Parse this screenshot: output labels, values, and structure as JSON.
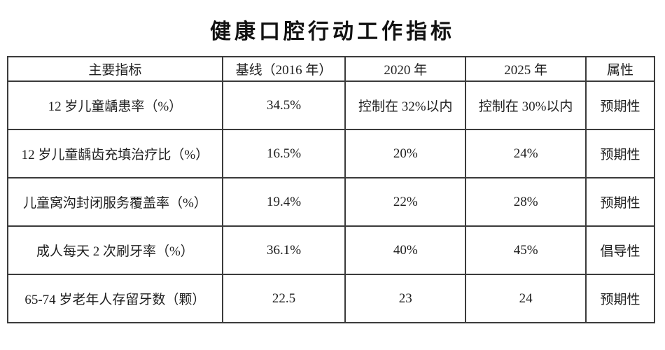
{
  "page": {
    "title": "健康口腔行动工作指标"
  },
  "table": {
    "headers": [
      "主要指标",
      "基线（2016 年）",
      "2020 年",
      "2025 年",
      "属性"
    ],
    "rows": [
      [
        "12 岁儿童龋患率（%）",
        "34.5%",
        "控制在 32%以内",
        "控制在 30%以内",
        "预期性"
      ],
      [
        "12 岁儿童龋齿充填治疗比（%）",
        "16.5%",
        "20%",
        "24%",
        "预期性"
      ],
      [
        "儿童窝沟封闭服务覆盖率（%）",
        "19.4%",
        "22%",
        "28%",
        "预期性"
      ],
      [
        "成人每天 2 次刷牙率（%）",
        "36.1%",
        "40%",
        "45%",
        "倡导性"
      ],
      [
        "65-74 岁老年人存留牙数（颗）",
        "22.5",
        "23",
        "24",
        "预期性"
      ]
    ]
  },
  "colors": {
    "border": "#3b3b3b",
    "text": "#1e1e1e",
    "background": "#ffffff"
  }
}
